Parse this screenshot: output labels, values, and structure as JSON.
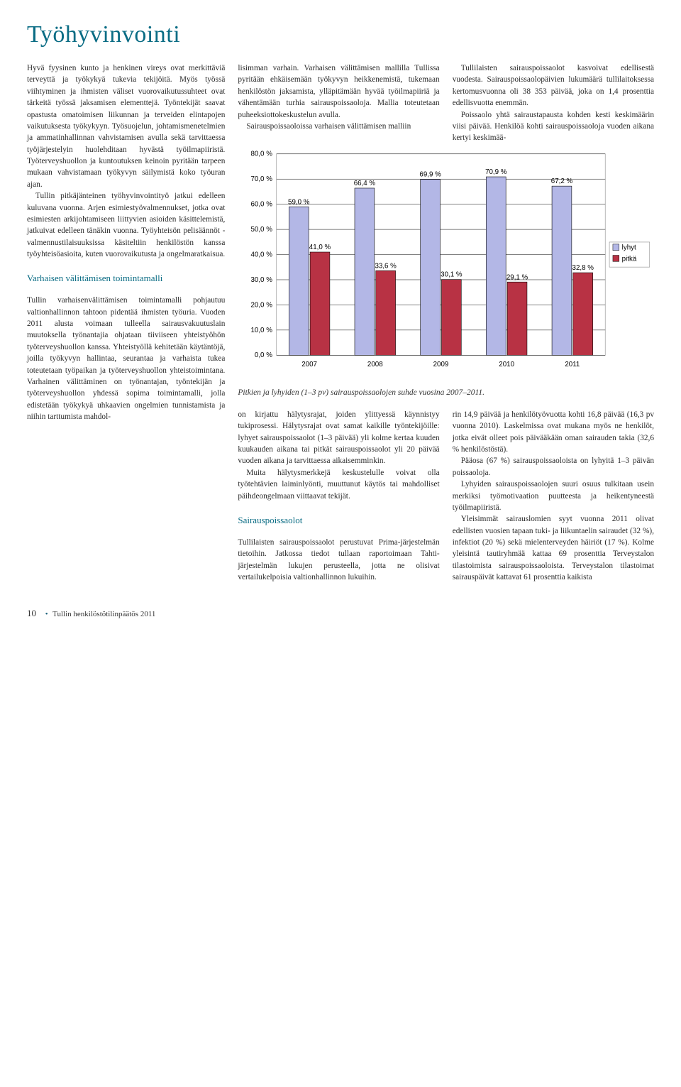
{
  "page": {
    "title": "Työhyvinvointi",
    "footer_page": "10",
    "footer_doc": "Tullin henkilöstötilinpäätös 2011"
  },
  "col1": {
    "p1": "Hyvä fyysinen kunto ja henkinen vireys ovat merkittäviä terveyttä ja työkykyä tukevia tekijöitä. Myös työssä viihtyminen ja ihmisten väliset vuorovaikutussuhteet ovat tärkeitä työssä jaksamisen elementtejä. Työntekijät saavat opastusta omatoimisen liikunnan ja terveiden elintapojen vaikutuksesta työkykyyn. Työsuojelun, johtamismenetelmien ja ammatinhallinnan vahvistamisen avulla sekä tarvittaessa työjärjestelyin huolehditaan hyvästä työilmapiiristä. Työterveyshuollon ja kuntoutuksen keinoin pyritään tarpeen mukaan vahvistamaan työkyvyn säilymistä koko työuran ajan.",
    "p2": "Tullin pitkäjänteinen työhyvinvointityö jatkui edelleen kuluvana vuonna. Arjen esimiestyövalmennukset, jotka ovat esimiesten arkijohtamiseen liittyvien asioiden käsittelemistä, jatkuivat edelleen tänäkin vuonna. Työyhteisön pelisäännöt -valmennustilaisuuksissa käsiteltiin henkilöstön kanssa työyhteisöasioita, kuten vuorovaikutusta ja ongelmaratkaisua.",
    "h1": "Varhaisen välittämisen toimintamalli",
    "p3": "Tullin varhaisenvälittämisen toimintamalli pohjautuu valtionhallinnon tahtoon pidentää ihmisten työuria. Vuoden 2011 alusta voimaan tulleella sairausvakuutuslain muutoksella työnantajia ohjataan tiiviiseen yhteistyöhön työterveyshuollon kanssa. Yhteistyöllä kehitetään käytäntöjä, joilla työkyvyn hallintaa, seurantaa ja varhaista tukea toteutetaan työpaikan ja työterveyshuollon yhteistoimintana. Varhainen välittäminen on työnantajan, työntekijän ja työterveyshuollon yhdessä sopima toimintamalli, jolla edistetään työkykyä uhkaavien ongelmien tunnistamista ja niihin tarttumista mahdol-"
  },
  "col2": {
    "p1": "lisimman varhain. Varhaisen välittämisen mallilla Tullissa pyritään ehkäisemään työkyvyn heikkenemistä, tukemaan henkilöstön jaksamista, ylläpitämään hyvää työilmapiiriä ja vähentämään turhia sairauspoissaoloja. Mallia toteutetaan puheeksiottokeskustelun avulla.",
    "p2": "Sairauspoissaoloissa varhaisen välittämisen malliin"
  },
  "col3": {
    "p1": "Tullilaisten sairauspoissaolot kasvoivat edellisestä vuodesta. Sairauspoissaolopäivien lukumäärä tullilaitoksessa kertomusvuonna oli 38 353 päivää, joka on 1,4 prosenttia edellisvuotta enemmän.",
    "p2": "Poissaolo yhtä sairaustapausta kohden kesti keskimäärin viisi päivää. Henkilöä kohti sairauspoissaoloja vuoden aikana kertyi keskimää-"
  },
  "chart": {
    "type": "bar",
    "categories": [
      "2007",
      "2008",
      "2009",
      "2010",
      "2011"
    ],
    "series": [
      {
        "name": "lyhyt",
        "values": [
          59.0,
          66.4,
          69.9,
          70.9,
          67.2
        ],
        "labels": [
          "59,0 %",
          "66,4 %",
          "69,9 %",
          "70,9 %",
          "67,2 %"
        ],
        "color": "#b3b7e6"
      },
      {
        "name": "pitkä",
        "values": [
          41.0,
          33.6,
          30.1,
          29.1,
          32.8
        ],
        "labels": [
          "41,0 %",
          "33,6 %",
          "30,1 %",
          "29,1 %",
          "32,8 %"
        ],
        "color": "#b83244"
      }
    ],
    "legend_labels": [
      "lyhyt",
      "pitkä"
    ],
    "yticks": [
      "0,0 %",
      "10,0 %",
      "20,0 %",
      "30,0 %",
      "40,0 %",
      "50,0 %",
      "60,0 %",
      "70,0 %",
      "80,0 %"
    ],
    "ylim": [
      0,
      80
    ],
    "bg": "#ffffff",
    "grid_color": "#000000",
    "text_color": "#000000",
    "label_fontsize": 10,
    "caption": "Pitkien ja lyhyiden (1–3 pv) sairauspoissaolojen suhde vuosina 2007–2011."
  },
  "bcol1": {
    "p1": "on kirjattu hälytysrajat, joiden ylittyessä käynnistyy tukiprosessi. Hälytysrajat ovat samat kaikille työntekijöille: lyhyet sairauspoissaolot (1–3 päivää) yli kolme kertaa kuuden kuukauden aikana tai pitkät sairauspoissaolot yli 20 päivää vuoden aikana ja tarvittaessa aikaisemminkin.",
    "p2": "Muita hälytysmerkkejä keskustelulle voivat olla työtehtävien laiminlyönti, muuttunut käytös tai mahdolliset päihdeongelmaan viittaavat tekijät.",
    "h1": "Sairauspoissaolot",
    "p3": "Tullilaisten sairauspoissaolot perustuvat Prima-järjestelmän tietoihin. Jatkossa tiedot tullaan raportoimaan Tahti-järjestelmän lukujen perusteella, jotta ne olisivat vertailukelpoisia valtionhallinnon lukuihin."
  },
  "bcol2": {
    "p1": "rin 14,9 päivää ja henkilötyövuotta kohti 16,8 päivää (16,3 pv vuonna 2010). Laskelmissa ovat mukana myös ne henkilöt, jotka eivät olleet pois päivääkään oman sairauden takia (32,6 % henkilöstöstä).",
    "p2": "Pääosa (67 %) sairauspoissaoloista on lyhyitä 1–3 päivän poissaoloja.",
    "p3": "Lyhyiden sairauspoissaolojen suuri osuus tulkitaan usein merkiksi työmotivaation puutteesta ja heikentyneestä työilmapiiristä.",
    "p4": "Yleisimmät sairauslomien syyt vuonna 2011 olivat edellisten vuosien tapaan tuki- ja liikuntaelin sairaudet (32 %), infektiot (20 %) sekä mielenterveyden häiriöt (17 %). Kolme yleisintä tautiryhmää kattaa 69 prosenttia Terveystalon tilastoimista sairauspoissaoloista. Terveystalon tilastoimat sairauspäivät kattavat 61 prosenttia kaikista"
  }
}
